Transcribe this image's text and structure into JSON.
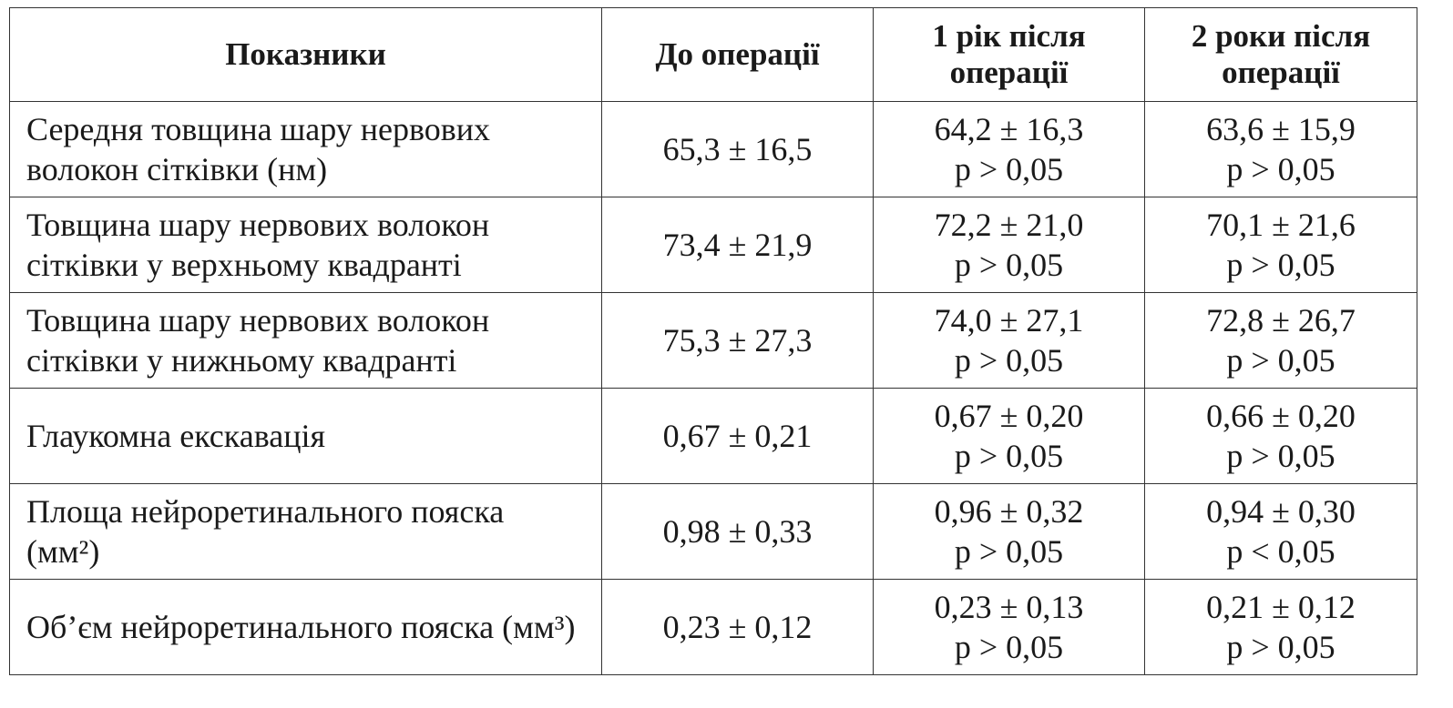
{
  "table": {
    "headers": [
      "Показники",
      "До операції",
      "1 рік після операції",
      "2 роки після операції"
    ],
    "rows": [
      {
        "label": "Середня товщина шару нервових волокон сітківки (нм)",
        "before": "65,3 ± 16,5",
        "year1": [
          "64,2 ± 16,3",
          "p > 0,05"
        ],
        "year2": [
          "63,6 ± 15,9",
          "p > 0,05"
        ]
      },
      {
        "label": "Товщина шару нервових волокон сітківки у верхньому квадранті",
        "before": "73,4 ± 21,9",
        "year1": [
          "72,2 ± 21,0",
          "p > 0,05"
        ],
        "year2": [
          "70,1 ± 21,6",
          "p > 0,05"
        ]
      },
      {
        "label": "Товщина шару нервових волокон сітківки у нижньому квадранті",
        "before": "75,3 ± 27,3",
        "year1": [
          "74,0 ± 27,1",
          "p > 0,05"
        ],
        "year2": [
          "72,8 ± 26,7",
          "p > 0,05"
        ]
      },
      {
        "label": "Глаукомна екскавація",
        "before": "0,67 ± 0,21",
        "year1": [
          "0,67 ± 0,20",
          "p > 0,05"
        ],
        "year2": [
          "0,66 ± 0,20",
          "p > 0,05"
        ]
      },
      {
        "label": "Площа нейроретинального пояска (мм²)",
        "before": "0,98 ± 0,33",
        "year1": [
          "0,96 ± 0,32",
          "p > 0,05"
        ],
        "year2": [
          "0,94 ± 0,30",
          "p < 0,05"
        ]
      },
      {
        "label": "Об’єм нейроретинального пояска (мм³)",
        "before": "0,23 ± 0,12",
        "year1": [
          "0,23 ± 0,13",
          "p > 0,05"
        ],
        "year2": [
          "0,21 ± 0,12",
          "p > 0,05"
        ]
      }
    ]
  }
}
